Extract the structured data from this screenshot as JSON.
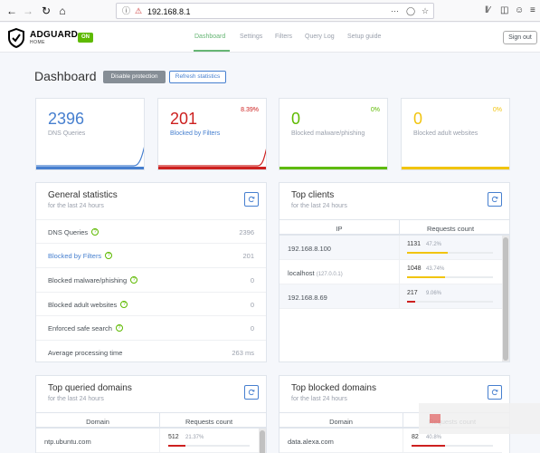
{
  "browser": {
    "url": "192.168.8.1",
    "back_icon": "arrow-left-icon",
    "forward_icon": "arrow-right-icon",
    "reload_icon": "reload-icon",
    "home_icon": "home-icon"
  },
  "brand": {
    "name": "ADGUARD",
    "sub": "HOME",
    "status": "ON",
    "status_color": "#5eba00"
  },
  "nav": {
    "items": [
      "Dashboard",
      "Settings",
      "Filters",
      "Query Log",
      "Setup guide"
    ],
    "active": "Dashboard",
    "signout": "Sign out"
  },
  "page": {
    "title": "Dashboard",
    "disable_btn": "Disable protection",
    "refresh_btn": "Refresh statistics"
  },
  "stats": [
    {
      "value": "2396",
      "label": "DNS Queries",
      "percent": "",
      "color": "#467fcf"
    },
    {
      "value": "201",
      "label": "Blocked by Filters",
      "percent": "8.39%",
      "color": "#cd201f"
    },
    {
      "value": "0",
      "label": "Blocked malware/phishing",
      "percent": "0%",
      "color": "#5eba00"
    },
    {
      "value": "0",
      "label": "Blocked adult websites",
      "percent": "0%",
      "color": "#f1c40f"
    }
  ],
  "general": {
    "title": "General statistics",
    "subtitle": "for the last 24 hours",
    "rows": [
      {
        "label": "DNS Queries",
        "value": "2396",
        "help": "?"
      },
      {
        "label": "Blocked by Filters",
        "value": "201",
        "help": "?"
      },
      {
        "label": "Blocked malware/phishing",
        "value": "0",
        "help": "?"
      },
      {
        "label": "Blocked adult websites",
        "value": "0",
        "help": "?"
      },
      {
        "label": "Enforced safe search",
        "value": "0",
        "help": "?"
      },
      {
        "label": "Average processing time",
        "value": "263 ms",
        "help": ""
      }
    ]
  },
  "clients": {
    "title": "Top clients",
    "subtitle": "for the last 24 hours",
    "col_ip": "IP",
    "col_count": "Requests count",
    "rows": [
      {
        "ip": "192.168.8.100",
        "extra": "",
        "count": "1131",
        "percent": "47.2%",
        "fill": 0.472,
        "color": "#f1c40f"
      },
      {
        "ip": "localhost",
        "extra": "(127.0.0.1)",
        "count": "1048",
        "percent": "43.74%",
        "fill": 0.4374,
        "color": "#f1c40f"
      },
      {
        "ip": "192.168.8.69",
        "extra": "",
        "count": "217",
        "percent": "9.06%",
        "fill": 0.0906,
        "color": "#cd201f"
      }
    ]
  },
  "queried": {
    "title": "Top queried domains",
    "subtitle": "for the last 24 hours",
    "col_domain": "Domain",
    "col_count": "Requests count",
    "rows": [
      {
        "domain": "ntp.ubuntu.com",
        "count": "512",
        "percent": "21.37%",
        "fill": 0.2137,
        "color": "#cd201f"
      }
    ]
  },
  "blocked": {
    "title": "Top blocked domains",
    "subtitle": "for the last 24 hours",
    "col_domain": "Domain",
    "col_count": "Requests count",
    "rows": [
      {
        "domain": "data.alexa.com",
        "count": "82",
        "percent": "40.8%",
        "fill": 0.408,
        "color": "#cd201f"
      }
    ]
  }
}
